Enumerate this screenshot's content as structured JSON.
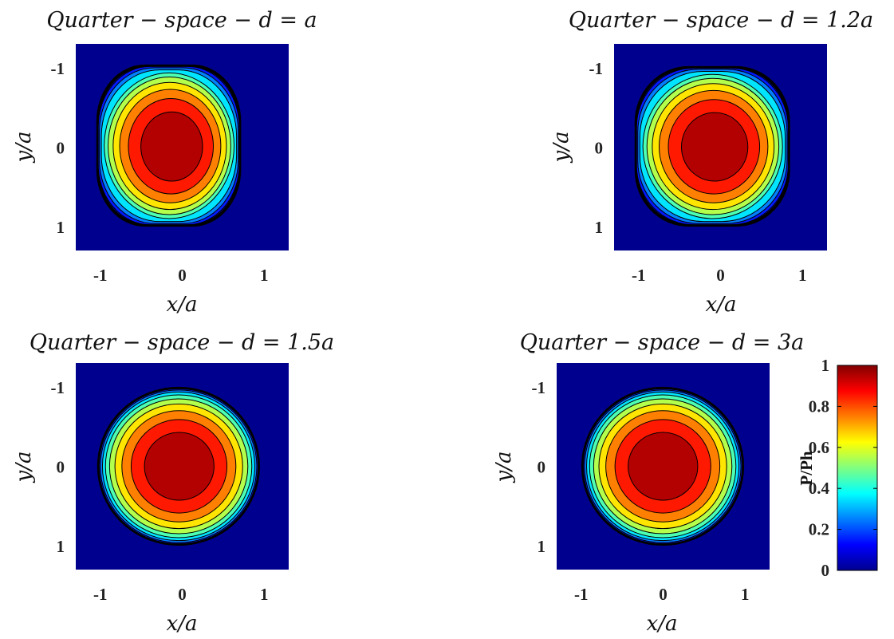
{
  "chart_data": {
    "type": "contour",
    "shared": {
      "xlabel": "x/a",
      "ylabel": "y/a",
      "xlim": [
        -1.3,
        1.3
      ],
      "ylim": [
        -1.3,
        1.3
      ],
      "y_axis_reversed": true,
      "xticks": [
        "-1",
        "0",
        "1"
      ],
      "yticks": [
        "-1",
        "0",
        "1"
      ],
      "colormap": "jet",
      "contour_levels": [
        0,
        0.1,
        0.2,
        0.3,
        0.4,
        0.5,
        0.6,
        0.7,
        0.8,
        0.9,
        1.0
      ]
    },
    "colorbar": {
      "label": "P/Ph",
      "min": 0,
      "max": 1,
      "ticks": [
        "0",
        "0.2",
        "0.4",
        "0.6",
        "0.8",
        "1"
      ]
    },
    "panels": [
      {
        "title": "Quarter − space − d = a",
        "peak_center": [
          -0.1,
          0.0
        ],
        "contact_extent": {
          "x_min": -1.03,
          "x_max": 0.7,
          "y_min": -1.02,
          "y_max": 0.98
        },
        "flattened_edge": "right",
        "peak_value": 1
      },
      {
        "title": "Quarter − space − d = 1.2a",
        "peak_center": [
          -0.05,
          0.0
        ],
        "contact_extent": {
          "x_min": -1.03,
          "x_max": 0.83,
          "y_min": -1.0,
          "y_max": 0.98
        },
        "flattened_edge": "right",
        "peak_value": 1
      },
      {
        "title": "Quarter − space − d = 1.5a",
        "peak_center": [
          -0.03,
          0.0
        ],
        "contact_extent": {
          "x_min": -1.02,
          "x_max": 0.93,
          "y_min": -0.98,
          "y_max": 0.98
        },
        "flattened_edge": "none",
        "peak_value": 1
      },
      {
        "title": "Quarter − space − d = 3a",
        "peak_center": [
          0.0,
          0.0
        ],
        "contact_extent": {
          "x_min": -0.98,
          "x_max": 0.97,
          "y_min": -0.98,
          "y_max": 0.98
        },
        "flattened_edge": "none",
        "peak_value": 1
      }
    ]
  }
}
